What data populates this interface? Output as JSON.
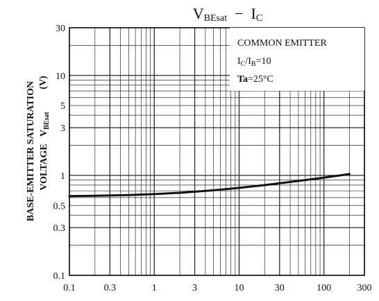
{
  "chart_data": {
    "type": "line",
    "title": {
      "main": "V",
      "main_sub": "BEsat",
      "sep": "  −  ",
      "main2": "I",
      "main2_sub": "C"
    },
    "ylabel_line1": "BASE-EMITTER SATURATION",
    "ylabel_line2_main": "VOLTAGE   V",
    "ylabel_line2_sub": "BEsat",
    "ylabel_unit": "(V)",
    "xscale": "log",
    "yscale": "log",
    "xlim": [
      0.1,
      300
    ],
    "ylim": [
      0.1,
      30
    ],
    "x_ticks": [
      {
        "value": 0.1,
        "label": "0.1"
      },
      {
        "value": 0.3,
        "label": "0.3"
      },
      {
        "value": 1,
        "label": "1"
      },
      {
        "value": 3,
        "label": "3"
      },
      {
        "value": 10,
        "label": "10"
      },
      {
        "value": 30,
        "label": "30"
      },
      {
        "value": 100,
        "label": "100"
      },
      {
        "value": 300,
        "label": "300"
      }
    ],
    "y_ticks": [
      {
        "value": 0.1,
        "label": "0.1"
      },
      {
        "value": 0.3,
        "label": "0.3"
      },
      {
        "value": 0.5,
        "label": "0.5"
      },
      {
        "value": 1,
        "label": "1"
      },
      {
        "value": 3,
        "label": "3"
      },
      {
        "value": 5,
        "label": "5"
      },
      {
        "value": 10,
        "label": "10"
      },
      {
        "value": 30,
        "label": "30"
      }
    ],
    "grid": true,
    "legend_box_position": "top-right",
    "annotations": {
      "line1": "COMMON EMITTER",
      "line2_a": "I",
      "line2_a_sub": "C",
      "line2_b": "/I",
      "line2_b_sub": "B",
      "line2_c": "=10",
      "line3_bold": "Ta",
      "line3_rest": "=25°C"
    },
    "series": [
      {
        "x": [
          0.1,
          0.2,
          0.5,
          1,
          2,
          5,
          10,
          20,
          50,
          100,
          200
        ],
        "y": [
          0.62,
          0.625,
          0.635,
          0.65,
          0.67,
          0.71,
          0.75,
          0.8,
          0.88,
          0.95,
          1.03
        ]
      }
    ],
    "colors": {
      "line": "#111111",
      "grid": "#2a2a2a",
      "background": "#ffffff"
    }
  }
}
